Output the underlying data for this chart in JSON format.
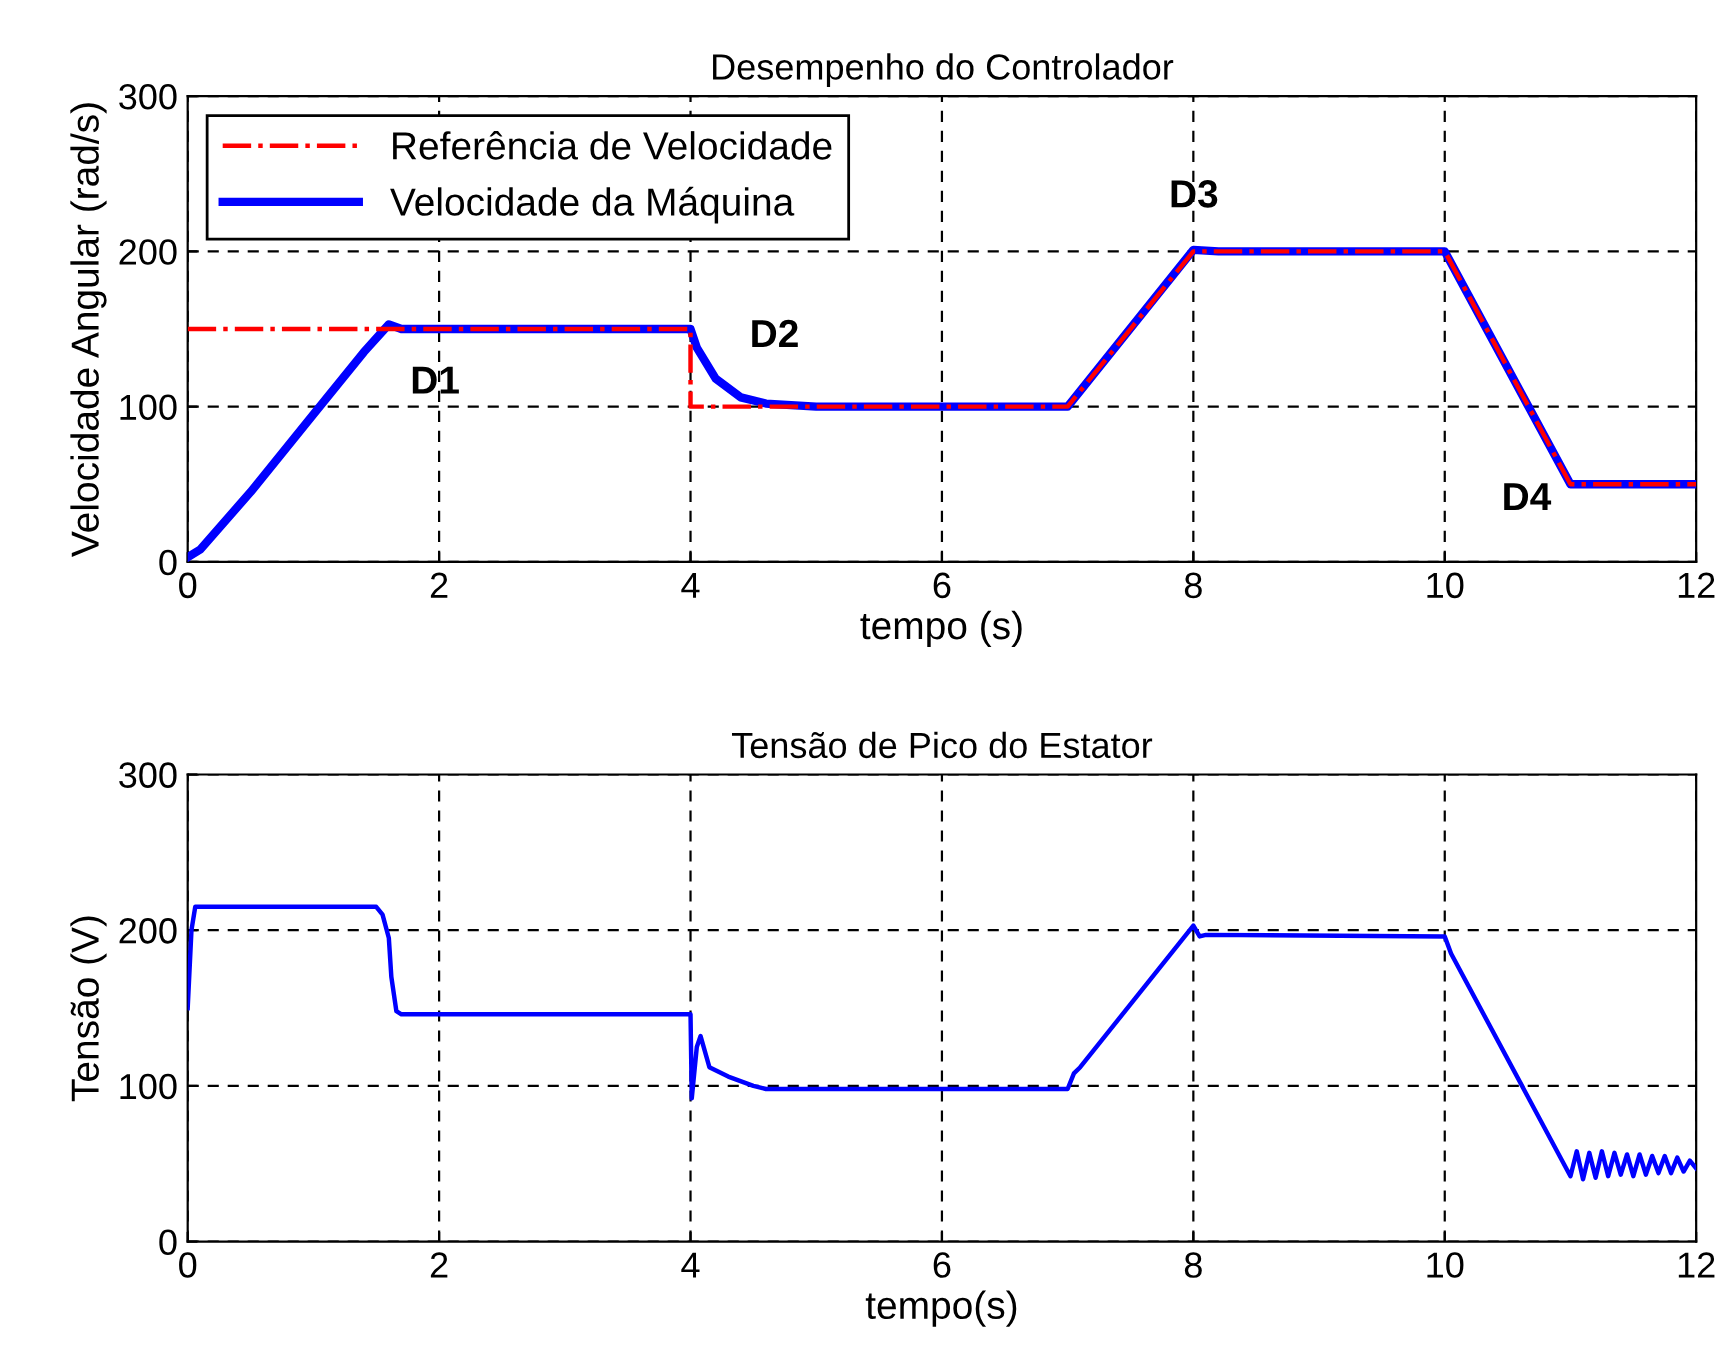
{
  "chart_data": [
    {
      "type": "line",
      "title": "Desempenho do Controlador",
      "xlabel": "tempo (s)",
      "ylabel": "Velocidade Angular (rad/s)",
      "xlim": [
        0,
        12
      ],
      "ylim": [
        0,
        300
      ],
      "xticks": [
        0,
        2,
        4,
        6,
        8,
        10,
        12
      ],
      "yticks": [
        0,
        100,
        200,
        300
      ],
      "grid": true,
      "legend": "top left",
      "series": [
        {
          "name": "Referência de Velocidade",
          "color": "#ff0000",
          "line_style": "dashdot",
          "x": [
            0,
            4,
            4,
            7,
            8,
            10,
            11,
            12
          ],
          "values": [
            150,
            150,
            100,
            100,
            200,
            200,
            50,
            50
          ]
        },
        {
          "name": "Velocidade da Máquina",
          "color": "#0000ff",
          "line_style": "solid",
          "x": [
            0,
            0.1,
            0.5,
            1.0,
            1.4,
            1.6,
            1.7,
            4,
            4.05,
            4.2,
            4.4,
            4.6,
            4.8,
            5,
            7,
            8,
            8.2,
            10,
            11,
            12
          ],
          "values": [
            3,
            8,
            45,
            95,
            135,
            153,
            150,
            150,
            138,
            118,
            106,
            102,
            101,
            100,
            100,
            201,
            200,
            200,
            50,
            50
          ]
        }
      ],
      "annotations": [
        "D1",
        "D2",
        "D3",
        "D4"
      ]
    },
    {
      "type": "line",
      "title": "Tensão de Pico do Estator",
      "xlabel": "tempo(s)",
      "ylabel": "Tensão (V)",
      "xlim": [
        0,
        12
      ],
      "ylim": [
        0,
        300
      ],
      "xticks": [
        0,
        2,
        4,
        6,
        8,
        10,
        12
      ],
      "yticks": [
        0,
        100,
        200,
        300
      ],
      "grid": true,
      "series": [
        {
          "color": "#0000ff",
          "line_style": "solid",
          "x": [
            0,
            0.03,
            0.06,
            1.5,
            1.55,
            1.6,
            1.62,
            1.66,
            1.7,
            4,
            4.01,
            4.05,
            4.08,
            4.15,
            4.3,
            4.5,
            4.6,
            7,
            7.05,
            7.1,
            8,
            8.05,
            8.1,
            10,
            10.05,
            11,
            11.05,
            11.1,
            11.15,
            11.2,
            11.25,
            11.3,
            11.35,
            11.4,
            11.45,
            11.5,
            11.55,
            11.6,
            11.65,
            11.7,
            11.75,
            11.8,
            11.85,
            11.9,
            11.95,
            12
          ],
          "values": [
            150,
            200,
            215,
            215,
            210,
            195,
            170,
            148,
            146,
            146,
            92,
            125,
            132,
            112,
            106,
            100,
            98,
            98,
            108,
            112,
            203,
            196,
            197,
            196,
            185,
            42,
            58,
            40,
            57,
            41,
            58,
            42,
            57,
            43,
            56,
            42,
            56,
            43,
            55,
            44,
            55,
            44,
            54,
            45,
            52,
            47
          ]
        }
      ]
    }
  ]
}
